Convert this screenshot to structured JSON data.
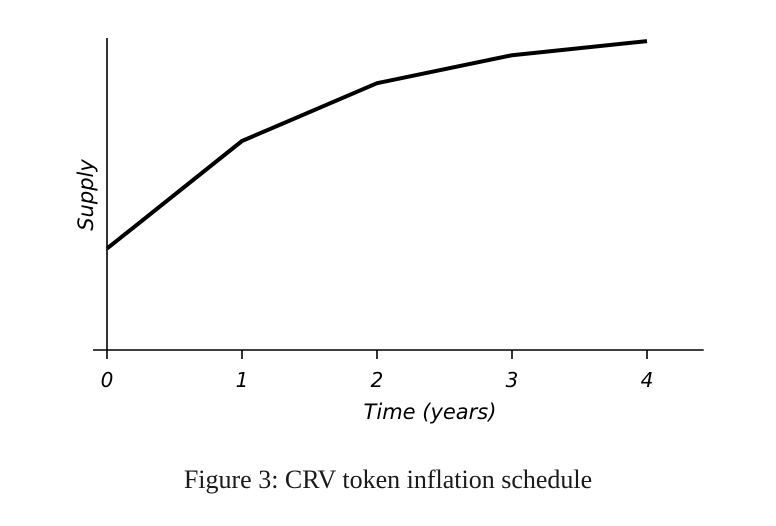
{
  "chart_data": {
    "type": "line",
    "title": "",
    "xlabel": "Time (years)",
    "ylabel": "Supply",
    "x": [
      0,
      1,
      2,
      3,
      4
    ],
    "series": [
      {
        "values": [
          0.325,
          0.67,
          0.855,
          0.945,
          0.99
        ]
      }
    ],
    "xticks": [
      "0",
      "1",
      "2",
      "3",
      "4"
    ],
    "xlim": [
      0,
      4.42
    ],
    "ylim": [
      0,
      1
    ],
    "grid": false,
    "legend": "none",
    "line_color": "#000000"
  },
  "caption": "Figure 3: CRV token inflation schedule"
}
